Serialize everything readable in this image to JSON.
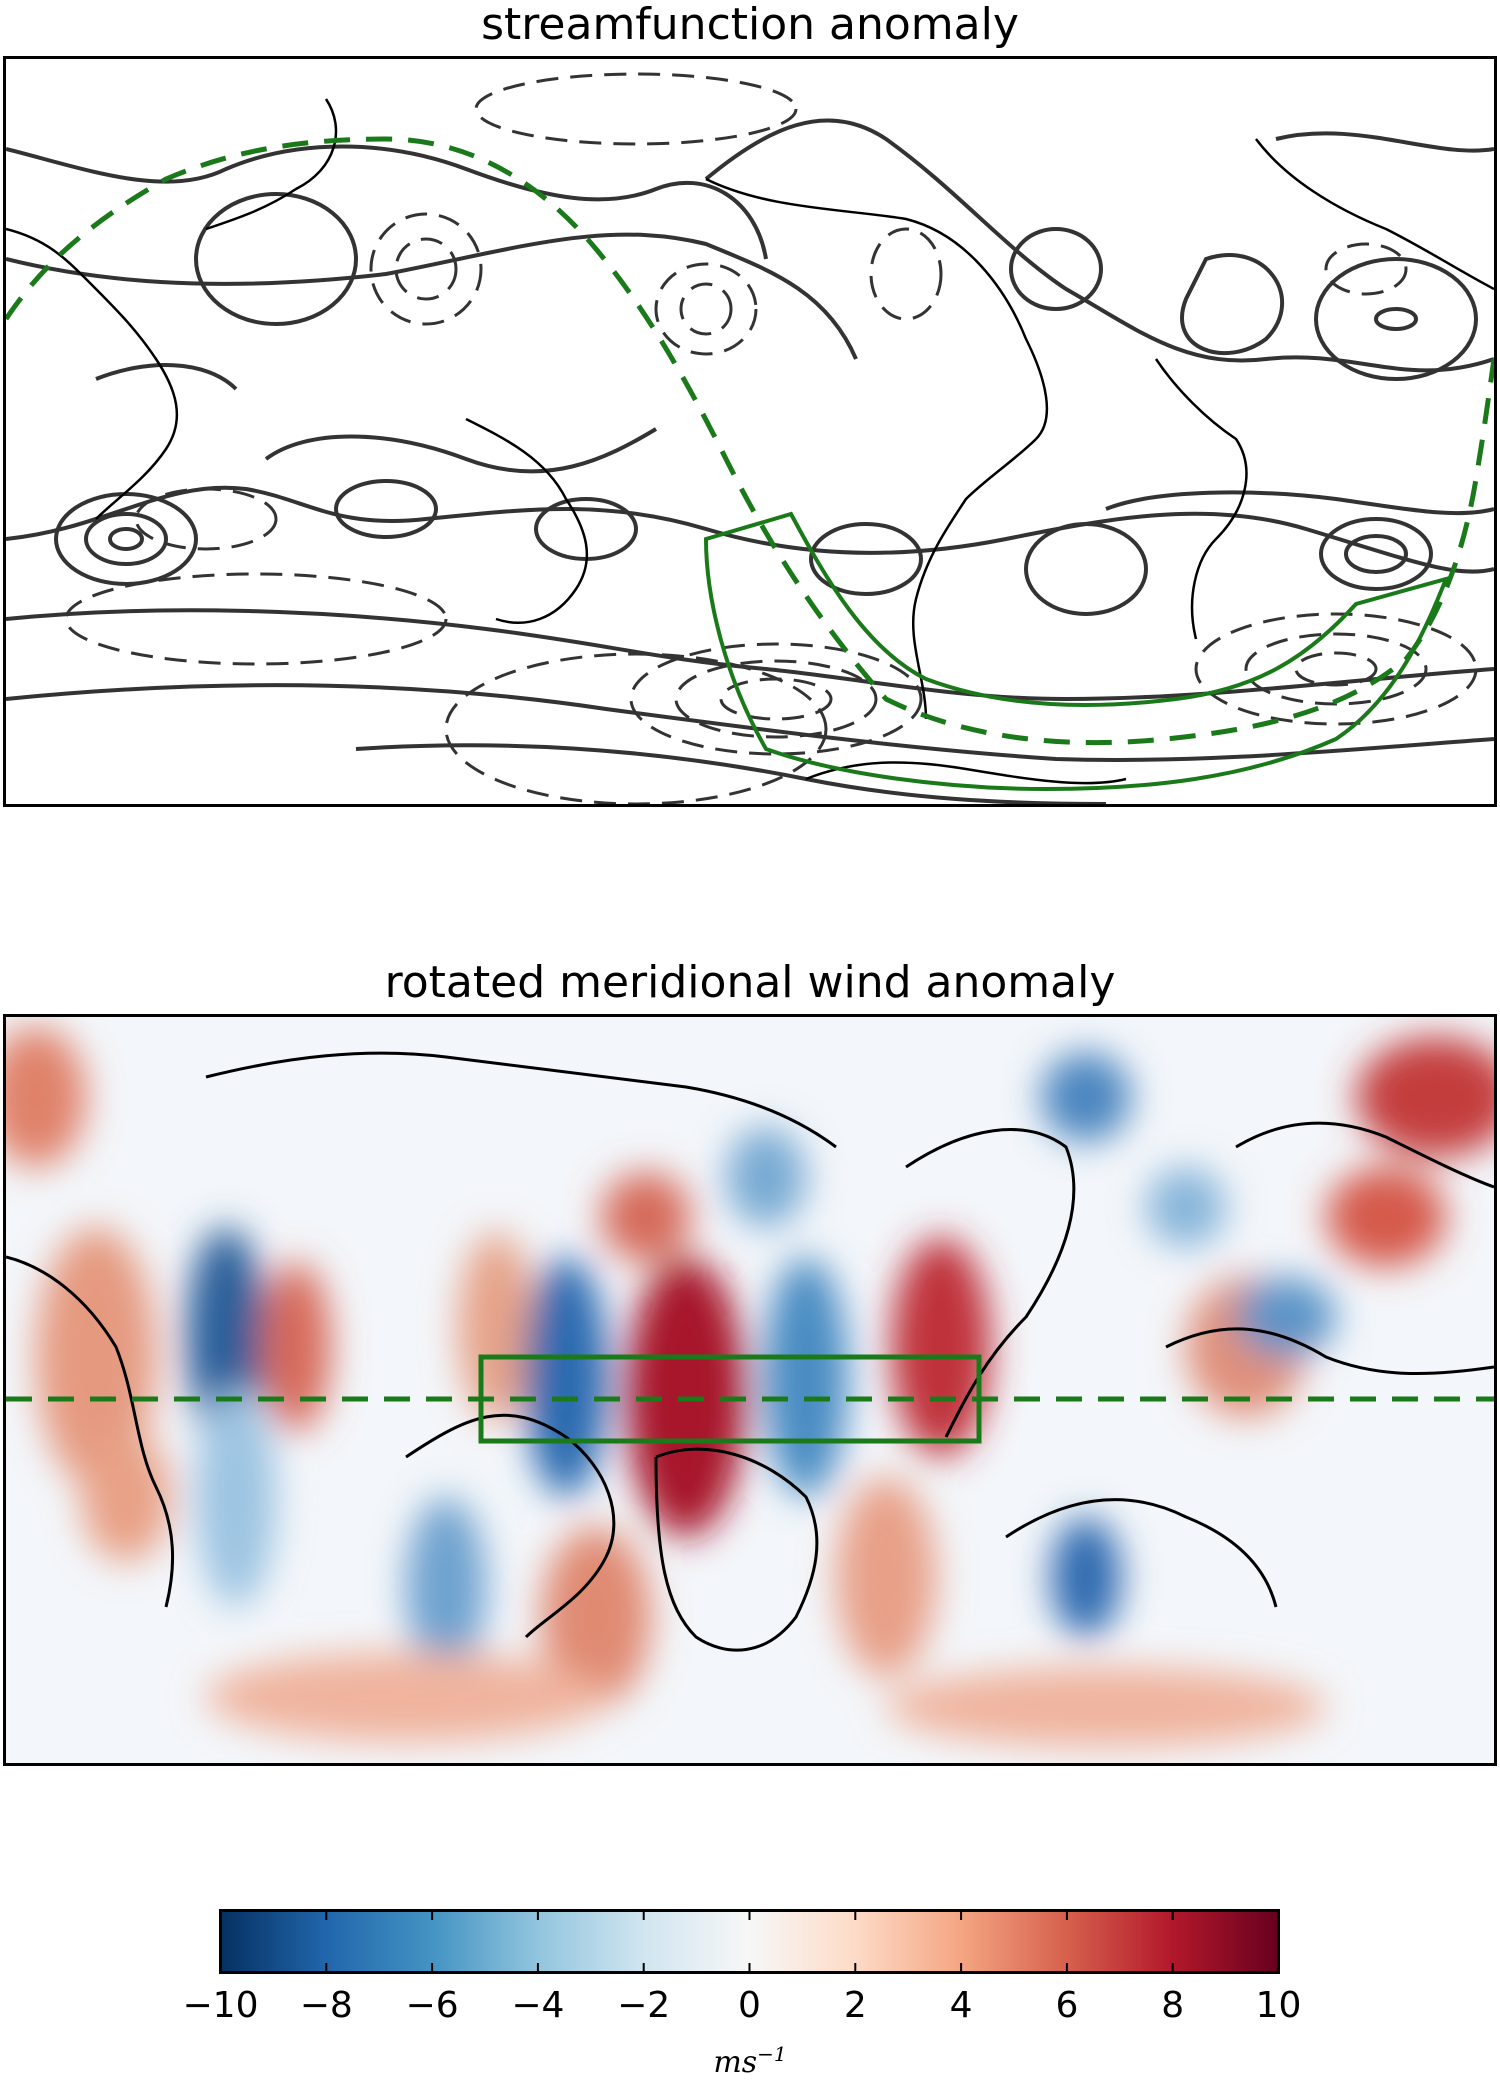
{
  "panels": {
    "top": {
      "title": "streamfunction anomaly"
    },
    "bottom": {
      "title": "rotated meridional wind anomaly"
    }
  },
  "colorbar": {
    "colormap": "RdBu_r",
    "range": [
      -10,
      10
    ],
    "ticks": [
      "−10",
      "−8",
      "−6",
      "−4",
      "−2",
      "0",
      "2",
      "4",
      "6",
      "8",
      "10"
    ],
    "tick_values": [
      -10,
      -8,
      -6,
      -4,
      -2,
      0,
      2,
      4,
      6,
      8,
      10
    ],
    "unit_base": "ms",
    "unit_exponent": "−1",
    "colors": {
      "min": "#053061",
      "mid": "#f7f7f7",
      "max": "#67001f"
    }
  },
  "colors": {
    "contour": "#333333",
    "box": "#1a7a1a",
    "coast": "#000000"
  }
}
